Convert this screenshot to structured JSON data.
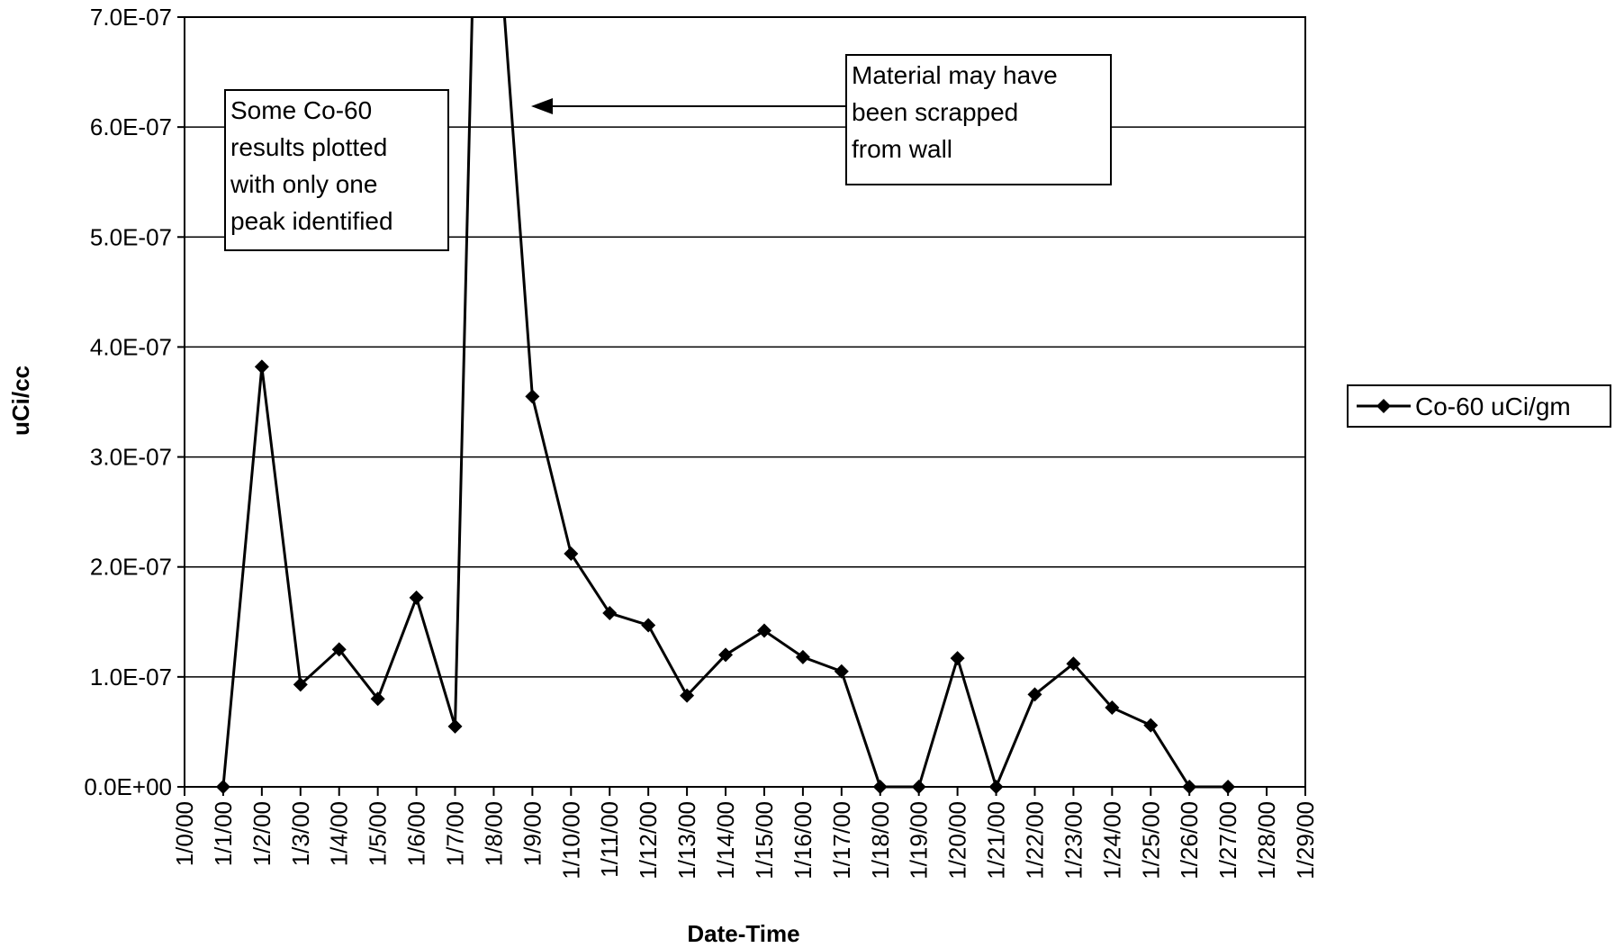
{
  "chart_data": {
    "type": "line",
    "title": "",
    "xlabel": "Date-Time",
    "ylabel": "uCi/cc",
    "x_tick_labels": [
      "1/0/00",
      "1/1/00",
      "1/2/00",
      "1/3/00",
      "1/4/00",
      "1/5/00",
      "1/6/00",
      "1/7/00",
      "1/8/00",
      "1/9/00",
      "1/10/00",
      "1/11/00",
      "1/12/00",
      "1/13/00",
      "1/14/00",
      "1/15/00",
      "1/16/00",
      "1/17/00",
      "1/18/00",
      "1/19/00",
      "1/20/00",
      "1/21/00",
      "1/22/00",
      "1/23/00",
      "1/24/00",
      "1/25/00",
      "1/26/00",
      "1/27/00",
      "1/28/00",
      "1/29/00"
    ],
    "xlim": [
      "1/0/00",
      "1/29/00"
    ],
    "y_tick_labels": [
      "0.0E+00",
      "1.0E-07",
      "2.0E-07",
      "3.0E-07",
      "4.0E-07",
      "5.0E-07",
      "6.0E-07",
      "7.0E-07"
    ],
    "ylim": [
      0,
      7e-07
    ],
    "grid": "horizontal",
    "legend_position": "right",
    "series": [
      {
        "name": "Co-60 uCi/gm",
        "color": "#000000",
        "marker": "diamond",
        "points": [
          {
            "x": "1/1/00",
            "y": 0
          },
          {
            "x": "1/2/00",
            "y": 3.82e-07
          },
          {
            "x": "1/3/00",
            "y": 9.3e-08
          },
          {
            "x": "1/4/00",
            "y": 1.25e-07
          },
          {
            "x": "1/5/00",
            "y": 8e-08
          },
          {
            "x": "1/6/00",
            "y": 1.72e-07
          },
          {
            "x": "1/7/00",
            "y": 5.5e-08
          },
          {
            "x": "1/9/00",
            "y": 3.55e-07
          },
          {
            "x": "1/10/00",
            "y": 2.12e-07
          },
          {
            "x": "1/11/00",
            "y": 1.58e-07
          },
          {
            "x": "1/12/00",
            "y": 1.47e-07
          },
          {
            "x": "1/13/00",
            "y": 8.3e-08
          },
          {
            "x": "1/14/00",
            "y": 1.2e-07
          },
          {
            "x": "1/15/00",
            "y": 1.42e-07
          },
          {
            "x": "1/16/00",
            "y": 1.18e-07
          },
          {
            "x": "1/17/00",
            "y": 1.05e-07
          },
          {
            "x": "1/18/00",
            "y": 0
          },
          {
            "x": "1/19/00",
            "y": 0
          },
          {
            "x": "1/20/00",
            "y": 1.17e-07
          },
          {
            "x": "1/21/00",
            "y": 0
          },
          {
            "x": "1/22/00",
            "y": 8.4e-08
          },
          {
            "x": "1/23/00",
            "y": 1.12e-07
          },
          {
            "x": "1/24/00",
            "y": 7.2e-08
          },
          {
            "x": "1/25/00",
            "y": 5.6e-08
          },
          {
            "x": "1/26/00",
            "y": 0
          },
          {
            "x": "1/27/00",
            "y": 0
          }
        ]
      }
    ],
    "annotations": [
      {
        "lines": [
          "Some Co-60",
          "results plotted",
          "with only one",
          "peak identified"
        ]
      },
      {
        "lines": [
          "Material may have",
          "been scrapped",
          "from wall"
        ]
      }
    ]
  }
}
